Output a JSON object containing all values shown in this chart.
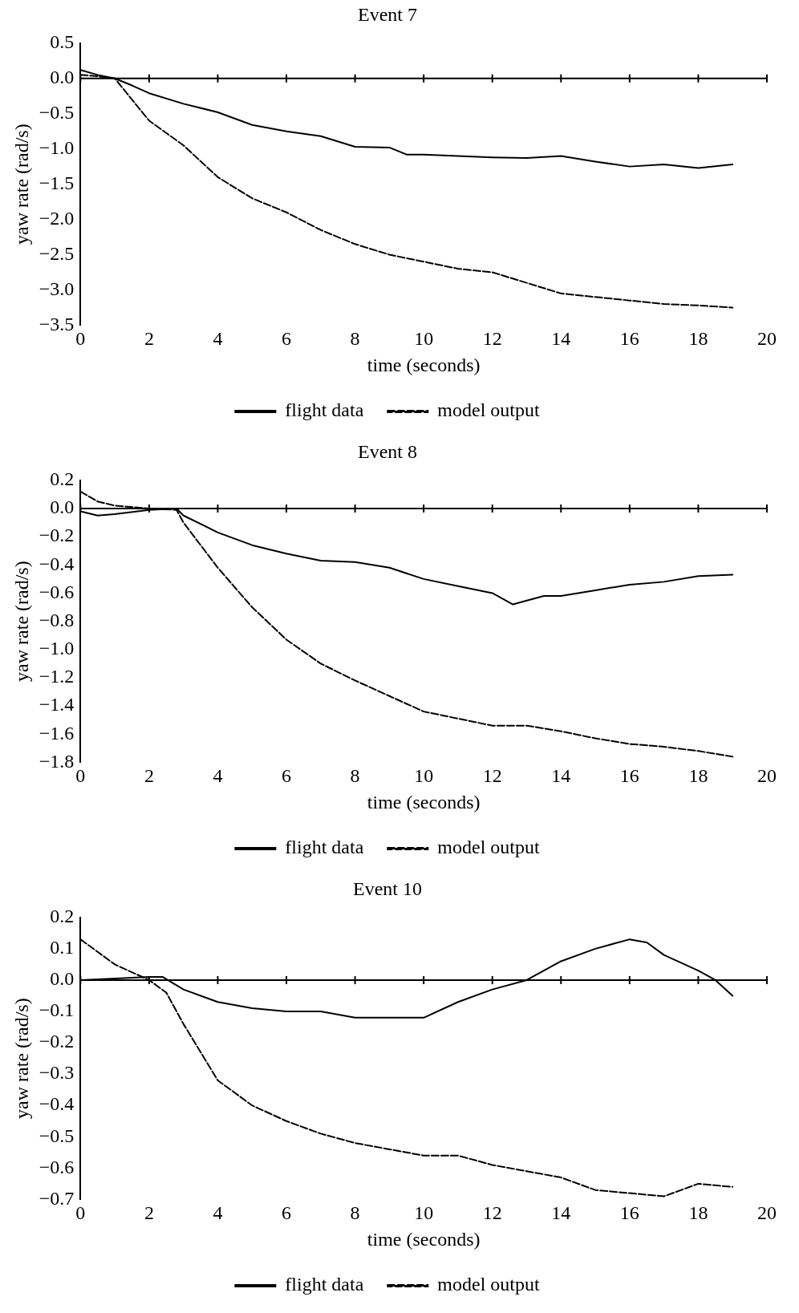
{
  "chart_data": [
    {
      "type": "line",
      "title": "Event 7",
      "xlabel": "time (seconds)",
      "ylabel": "yaw rate (rad/s)",
      "xlim": [
        0,
        20
      ],
      "xticks": [
        0,
        2,
        4,
        6,
        8,
        10,
        12,
        14,
        16,
        18,
        20
      ],
      "ylim": [
        -3.5,
        0.5
      ],
      "yticks": [
        {
          "value": 0.5,
          "label": "0.5"
        },
        {
          "value": 0,
          "label": "0.0"
        },
        {
          "value": -0.5,
          "label": "−0.5"
        },
        {
          "value": -1,
          "label": "−1.0"
        },
        {
          "value": -1.5,
          "label": "−1.5"
        },
        {
          "value": -2,
          "label": "−2.0"
        },
        {
          "value": -2.5,
          "label": "−2.5"
        },
        {
          "value": -3,
          "label": "−3.0"
        },
        {
          "value": -3.5,
          "label": "−3.5"
        }
      ],
      "grid": false,
      "legend": "bottom",
      "ref_lines": [
        {
          "axis": "y",
          "value": 0,
          "color": "#000000"
        }
      ],
      "series": [
        {
          "name": "flight data",
          "color": "#000000",
          "line_style": "solid",
          "x": [
            0,
            0.5,
            1,
            1.5,
            2,
            3,
            4,
            5,
            6,
            7,
            8,
            9,
            9.5,
            10,
            11,
            12,
            13,
            14,
            15,
            16,
            17,
            18,
            19
          ],
          "values": [
            0.12,
            0.05,
            0,
            -0.1,
            -0.21,
            -0.36,
            -0.48,
            -0.66,
            -0.75,
            -0.82,
            -0.97,
            -0.98,
            -1.08,
            -1.08,
            -1.1,
            -1.12,
            -1.13,
            -1.1,
            -1.18,
            -1.25,
            -1.22,
            -1.27,
            -1.22
          ]
        },
        {
          "name": "model output",
          "color": "#000000",
          "line_style": "dashed",
          "x": [
            0,
            0.5,
            1,
            1.5,
            2,
            3,
            4,
            5,
            6,
            7,
            8,
            9,
            10,
            11,
            12,
            13,
            14,
            15,
            16,
            17,
            18,
            19
          ],
          "values": [
            0.05,
            0.03,
            0,
            -0.3,
            -0.6,
            -0.95,
            -1.4,
            -1.7,
            -1.9,
            -2.15,
            -2.35,
            -2.5,
            -2.6,
            -2.7,
            -2.75,
            -2.9,
            -3.05,
            -3.1,
            -3.15,
            -3.2,
            -3.22,
            -3.25
          ]
        }
      ]
    },
    {
      "type": "line",
      "title": "Event 8",
      "xlabel": "time (seconds)",
      "ylabel": "yaw rate (rad/s)",
      "xlim": [
        0,
        20
      ],
      "xticks": [
        0,
        2,
        4,
        6,
        8,
        10,
        12,
        14,
        16,
        18,
        20
      ],
      "ylim": [
        -1.8,
        0.2
      ],
      "yticks": [
        {
          "value": 0.2,
          "label": "0.2"
        },
        {
          "value": 0,
          "label": "0.0"
        },
        {
          "value": -0.2,
          "label": "−0.2"
        },
        {
          "value": -0.4,
          "label": "−0.4"
        },
        {
          "value": -0.6,
          "label": "−0.6"
        },
        {
          "value": -0.8,
          "label": "−0.8"
        },
        {
          "value": -1,
          "label": "−1.0"
        },
        {
          "value": -1.2,
          "label": "−1.2"
        },
        {
          "value": -1.4,
          "label": "−1.4"
        },
        {
          "value": -1.6,
          "label": "−1.6"
        },
        {
          "value": -1.8,
          "label": "−1.8"
        }
      ],
      "grid": false,
      "legend": "bottom",
      "ref_lines": [
        {
          "axis": "y",
          "value": 0,
          "color": "#000000"
        }
      ],
      "series": [
        {
          "name": "flight data",
          "color": "#000000",
          "line_style": "solid",
          "x": [
            0,
            0.5,
            1,
            2,
            2.8,
            3,
            4,
            5,
            6,
            7,
            8,
            9,
            10,
            11,
            12,
            12.6,
            13.5,
            14,
            15,
            16,
            17,
            18,
            19
          ],
          "values": [
            -0.02,
            -0.05,
            -0.04,
            -0.01,
            0,
            -0.05,
            -0.17,
            -0.26,
            -0.32,
            -0.37,
            -0.38,
            -0.42,
            -0.5,
            -0.55,
            -0.6,
            -0.68,
            -0.62,
            -0.62,
            -0.58,
            -0.54,
            -0.52,
            -0.48,
            -0.47
          ]
        },
        {
          "name": "model output",
          "color": "#000000",
          "line_style": "dashed",
          "x": [
            0,
            0.5,
            1,
            2,
            2.8,
            3,
            4,
            5,
            6,
            7,
            8,
            9,
            10,
            11,
            12,
            13,
            14,
            15,
            16,
            17,
            18,
            19
          ],
          "values": [
            0.12,
            0.05,
            0.02,
            0,
            -0.01,
            -0.1,
            -0.42,
            -0.7,
            -0.93,
            -1.1,
            -1.22,
            -1.33,
            -1.44,
            -1.49,
            -1.54,
            -1.54,
            -1.58,
            -1.63,
            -1.67,
            -1.69,
            -1.72,
            -1.76
          ]
        }
      ]
    },
    {
      "type": "line",
      "title": "Event 10",
      "xlabel": "time (seconds)",
      "ylabel": "yaw rate (rad/s)",
      "xlim": [
        0,
        20
      ],
      "xticks": [
        0,
        2,
        4,
        6,
        8,
        10,
        12,
        14,
        16,
        18,
        20
      ],
      "ylim": [
        -0.7,
        0.2
      ],
      "yticks": [
        {
          "value": 0.2,
          "label": "0.2"
        },
        {
          "value": 0.1,
          "label": "0.1"
        },
        {
          "value": 0,
          "label": "0.0"
        },
        {
          "value": -0.1,
          "label": "−0.1"
        },
        {
          "value": -0.2,
          "label": "−0.2"
        },
        {
          "value": -0.3,
          "label": "−0.3"
        },
        {
          "value": -0.4,
          "label": "−0.4"
        },
        {
          "value": -0.5,
          "label": "−0.5"
        },
        {
          "value": -0.6,
          "label": "−0.6"
        },
        {
          "value": -0.7,
          "label": "−0.7"
        }
      ],
      "grid": false,
      "legend": "bottom",
      "ref_lines": [
        {
          "axis": "y",
          "value": 0,
          "color": "#000000"
        }
      ],
      "series": [
        {
          "name": "flight data",
          "color": "#000000",
          "line_style": "solid",
          "x": [
            0,
            1,
            2,
            2.4,
            3,
            4,
            5,
            6,
            7,
            8,
            9,
            10,
            11,
            12,
            13,
            14,
            15,
            16,
            16.5,
            17,
            18,
            18.5,
            19
          ],
          "values": [
            0,
            0.005,
            0.01,
            0.01,
            -0.03,
            -0.07,
            -0.09,
            -0.1,
            -0.1,
            -0.12,
            -0.12,
            -0.12,
            -0.07,
            -0.03,
            0,
            0.06,
            0.1,
            0.13,
            0.12,
            0.08,
            0.03,
            0,
            -0.05
          ]
        },
        {
          "name": "model output",
          "color": "#000000",
          "line_style": "dashed",
          "x": [
            0,
            1,
            2,
            2.5,
            3,
            4,
            5,
            6,
            7,
            8,
            9,
            10,
            11,
            12,
            13,
            14,
            15,
            16,
            17,
            18,
            19
          ],
          "values": [
            0.13,
            0.05,
            0,
            -0.04,
            -0.14,
            -0.32,
            -0.4,
            -0.45,
            -0.49,
            -0.52,
            -0.54,
            -0.56,
            -0.56,
            -0.59,
            -0.61,
            -0.63,
            -0.67,
            -0.68,
            -0.69,
            -0.65,
            -0.66
          ]
        }
      ]
    }
  ]
}
